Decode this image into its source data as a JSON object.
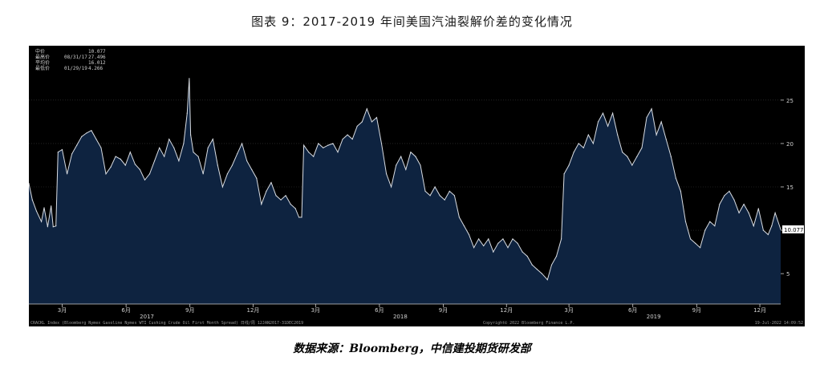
{
  "title": "图表 9：2017-2019 年间美国汽油裂解价差的变化情况",
  "source": "数据来源：Bloomberg，中信建投期货研发部",
  "legend": {
    "rows": [
      {
        "label": "中价",
        "date": "",
        "value": "10.077"
      },
      {
        "label": "最高价",
        "date": "08/31/17",
        "value": "27.496"
      },
      {
        "label": "平均价",
        "date": "",
        "value": "16.012"
      },
      {
        "label": "最低价",
        "date": "01/29/19",
        "value": "4.266"
      }
    ]
  },
  "last_value_label": "10.077",
  "footer": {
    "left": "CRACKL Index (Bloomberg Nymex Gasoline Nymex WTI Cushing Crude Oil First Month Spread)  日线/周  12JAN2017-31DEC2019",
    "center": "Copyright© 2022 Bloomberg Finance L.P.",
    "right": "19-Jul-2022 14:09:52"
  },
  "colors": {
    "background": "#000000",
    "area": "#0e2340",
    "line": "#d9dde3",
    "grid": "#3a3a3a",
    "text": "#cfcfcf"
  },
  "chart_data": {
    "type": "area",
    "title": "",
    "xlabel": "",
    "ylabel": "",
    "ylim": [
      1.5,
      28.5
    ],
    "xlim": [
      "2017-01-12",
      "2019-12-31"
    ],
    "grid": true,
    "y_ticks": [
      5,
      10,
      15,
      20,
      25
    ],
    "y_tick_labels": [
      "5",
      "10",
      "15",
      "20",
      "25"
    ],
    "x_ticks": [
      {
        "date": "2017-03-01",
        "label": "3月"
      },
      {
        "date": "2017-06-01",
        "label": "6月"
      },
      {
        "date": "2017-09-01",
        "label": "9月"
      },
      {
        "date": "2017-12-01",
        "label": "12月"
      },
      {
        "date": "2018-03-01",
        "label": "3月"
      },
      {
        "date": "2018-06-01",
        "label": "6月"
      },
      {
        "date": "2018-09-01",
        "label": "9月"
      },
      {
        "date": "2018-12-01",
        "label": "12月"
      },
      {
        "date": "2019-03-01",
        "label": "3月"
      },
      {
        "date": "2019-06-01",
        "label": "6月"
      },
      {
        "date": "2019-09-01",
        "label": "9月"
      },
      {
        "date": "2019-12-01",
        "label": "12月"
      }
    ],
    "year_labels": [
      {
        "date": "2017-07-01",
        "label": "2017"
      },
      {
        "date": "2018-07-01",
        "label": "2018"
      },
      {
        "date": "2019-07-01",
        "label": "2019"
      }
    ],
    "series": [
      {
        "values": [
          [
            "2017-01-12",
            15.4
          ],
          [
            "2017-01-17",
            13.5
          ],
          [
            "2017-01-23",
            12.2
          ],
          [
            "2017-01-30",
            11.0
          ],
          [
            "2017-02-03",
            12.6
          ],
          [
            "2017-02-08",
            10.4
          ],
          [
            "2017-02-13",
            12.8
          ],
          [
            "2017-02-16",
            10.4
          ],
          [
            "2017-02-20",
            10.5
          ],
          [
            "2017-02-23",
            19.0
          ],
          [
            "2017-03-01",
            19.3
          ],
          [
            "2017-03-08",
            16.5
          ],
          [
            "2017-03-15",
            18.8
          ],
          [
            "2017-03-22",
            19.8
          ],
          [
            "2017-03-29",
            20.8
          ],
          [
            "2017-04-05",
            21.2
          ],
          [
            "2017-04-12",
            21.5
          ],
          [
            "2017-04-19",
            20.5
          ],
          [
            "2017-04-26",
            19.5
          ],
          [
            "2017-05-03",
            16.5
          ],
          [
            "2017-05-10",
            17.3
          ],
          [
            "2017-05-17",
            18.5
          ],
          [
            "2017-05-24",
            18.2
          ],
          [
            "2017-05-31",
            17.5
          ],
          [
            "2017-06-07",
            19.0
          ],
          [
            "2017-06-14",
            17.6
          ],
          [
            "2017-06-21",
            17.0
          ],
          [
            "2017-06-28",
            15.8
          ],
          [
            "2017-07-05",
            16.5
          ],
          [
            "2017-07-12",
            18.0
          ],
          [
            "2017-07-19",
            19.5
          ],
          [
            "2017-07-26",
            18.5
          ],
          [
            "2017-08-02",
            20.5
          ],
          [
            "2017-08-09",
            19.5
          ],
          [
            "2017-08-16",
            18.0
          ],
          [
            "2017-08-23",
            20.0
          ],
          [
            "2017-08-28",
            23.5
          ],
          [
            "2017-08-31",
            27.5
          ],
          [
            "2017-09-02",
            21.0
          ],
          [
            "2017-09-06",
            19.0
          ],
          [
            "2017-09-13",
            18.5
          ],
          [
            "2017-09-20",
            16.5
          ],
          [
            "2017-09-27",
            19.5
          ],
          [
            "2017-10-04",
            20.5
          ],
          [
            "2017-10-11",
            17.5
          ],
          [
            "2017-10-18",
            15.0
          ],
          [
            "2017-10-25",
            16.5
          ],
          [
            "2017-11-01",
            17.5
          ],
          [
            "2017-11-08",
            18.8
          ],
          [
            "2017-11-15",
            20.0
          ],
          [
            "2017-11-22",
            18.0
          ],
          [
            "2017-11-29",
            17.0
          ],
          [
            "2017-12-06",
            16.0
          ],
          [
            "2017-12-13",
            13.0
          ],
          [
            "2017-12-20",
            14.5
          ],
          [
            "2017-12-27",
            15.5
          ],
          [
            "2018-01-03",
            14.0
          ],
          [
            "2018-01-10",
            13.5
          ],
          [
            "2018-01-17",
            14.0
          ],
          [
            "2018-01-24",
            13.0
          ],
          [
            "2018-01-31",
            12.5
          ],
          [
            "2018-02-05",
            11.5
          ],
          [
            "2018-02-09",
            11.5
          ],
          [
            "2018-02-12",
            19.8
          ],
          [
            "2018-02-19",
            19.0
          ],
          [
            "2018-02-26",
            18.5
          ],
          [
            "2018-03-05",
            20.0
          ],
          [
            "2018-03-12",
            19.5
          ],
          [
            "2018-03-19",
            19.8
          ],
          [
            "2018-03-26",
            20.0
          ],
          [
            "2018-04-02",
            19.0
          ],
          [
            "2018-04-09",
            20.5
          ],
          [
            "2018-04-16",
            21.0
          ],
          [
            "2018-04-23",
            20.5
          ],
          [
            "2018-04-30",
            22.0
          ],
          [
            "2018-05-07",
            22.5
          ],
          [
            "2018-05-14",
            24.0
          ],
          [
            "2018-05-21",
            22.5
          ],
          [
            "2018-05-28",
            23.0
          ],
          [
            "2018-06-04",
            20.0
          ],
          [
            "2018-06-11",
            16.5
          ],
          [
            "2018-06-18",
            15.0
          ],
          [
            "2018-06-25",
            17.5
          ],
          [
            "2018-07-02",
            18.5
          ],
          [
            "2018-07-09",
            17.0
          ],
          [
            "2018-07-16",
            19.0
          ],
          [
            "2018-07-23",
            18.5
          ],
          [
            "2018-07-30",
            17.5
          ],
          [
            "2018-08-06",
            14.5
          ],
          [
            "2018-08-13",
            14.0
          ],
          [
            "2018-08-20",
            15.0
          ],
          [
            "2018-08-27",
            14.0
          ],
          [
            "2018-09-03",
            13.5
          ],
          [
            "2018-09-10",
            14.5
          ],
          [
            "2018-09-17",
            14.0
          ],
          [
            "2018-09-24",
            11.5
          ],
          [
            "2018-10-01",
            10.5
          ],
          [
            "2018-10-08",
            9.5
          ],
          [
            "2018-10-15",
            8.0
          ],
          [
            "2018-10-22",
            9.0
          ],
          [
            "2018-10-29",
            8.2
          ],
          [
            "2018-11-05",
            9.0
          ],
          [
            "2018-11-12",
            7.5
          ],
          [
            "2018-11-19",
            8.5
          ],
          [
            "2018-11-26",
            9.0
          ],
          [
            "2018-12-03",
            8.0
          ],
          [
            "2018-12-10",
            9.0
          ],
          [
            "2018-12-17",
            8.5
          ],
          [
            "2018-12-24",
            7.5
          ],
          [
            "2018-12-31",
            7.0
          ],
          [
            "2019-01-07",
            6.0
          ],
          [
            "2019-01-14",
            5.5
          ],
          [
            "2019-01-21",
            5.0
          ],
          [
            "2019-01-29",
            4.3
          ],
          [
            "2019-02-04",
            6.0
          ],
          [
            "2019-02-11",
            7.0
          ],
          [
            "2019-02-18",
            9.0
          ],
          [
            "2019-02-22",
            16.5
          ],
          [
            "2019-03-01",
            17.5
          ],
          [
            "2019-03-08",
            19.0
          ],
          [
            "2019-03-15",
            20.0
          ],
          [
            "2019-03-22",
            19.5
          ],
          [
            "2019-03-29",
            21.0
          ],
          [
            "2019-04-05",
            20.0
          ],
          [
            "2019-04-12",
            22.5
          ],
          [
            "2019-04-19",
            23.5
          ],
          [
            "2019-04-26",
            22.0
          ],
          [
            "2019-05-03",
            23.5
          ],
          [
            "2019-05-10",
            21.0
          ],
          [
            "2019-05-17",
            19.0
          ],
          [
            "2019-05-24",
            18.5
          ],
          [
            "2019-05-31",
            17.5
          ],
          [
            "2019-06-07",
            18.5
          ],
          [
            "2019-06-14",
            19.5
          ],
          [
            "2019-06-21",
            23.0
          ],
          [
            "2019-06-28",
            24.0
          ],
          [
            "2019-07-05",
            21.0
          ],
          [
            "2019-07-12",
            22.5
          ],
          [
            "2019-07-19",
            20.5
          ],
          [
            "2019-07-26",
            18.5
          ],
          [
            "2019-08-02",
            16.0
          ],
          [
            "2019-08-09",
            14.5
          ],
          [
            "2019-08-16",
            11.0
          ],
          [
            "2019-08-23",
            9.0
          ],
          [
            "2019-08-30",
            8.5
          ],
          [
            "2019-09-06",
            8.0
          ],
          [
            "2019-09-13",
            10.0
          ],
          [
            "2019-09-20",
            11.0
          ],
          [
            "2019-09-27",
            10.5
          ],
          [
            "2019-10-04",
            13.0
          ],
          [
            "2019-10-11",
            14.0
          ],
          [
            "2019-10-18",
            14.5
          ],
          [
            "2019-10-25",
            13.5
          ],
          [
            "2019-11-01",
            12.0
          ],
          [
            "2019-11-08",
            13.0
          ],
          [
            "2019-11-15",
            12.0
          ],
          [
            "2019-11-22",
            10.5
          ],
          [
            "2019-11-29",
            12.5
          ],
          [
            "2019-12-06",
            10.0
          ],
          [
            "2019-12-13",
            9.5
          ],
          [
            "2019-12-18",
            10.5
          ],
          [
            "2019-12-23",
            12.0
          ],
          [
            "2019-12-31",
            10.1
          ]
        ]
      }
    ]
  }
}
